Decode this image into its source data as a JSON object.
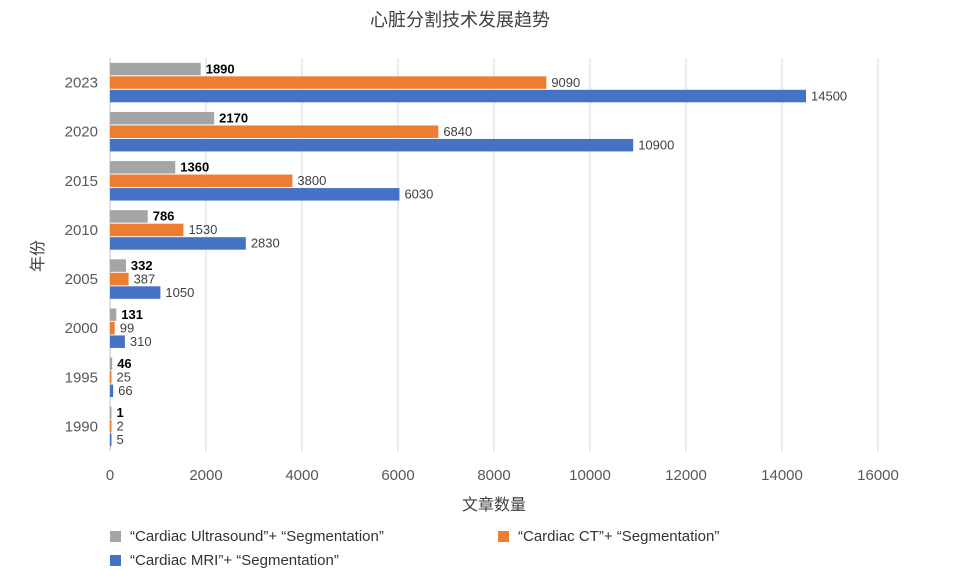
{
  "chart_data": {
    "type": "bar",
    "orientation": "horizontal",
    "title": "心脏分割技术发展趋势",
    "xlabel": "文章数量",
    "ylabel": "年份",
    "categories": [
      "1990",
      "1995",
      "2000",
      "2005",
      "2010",
      "2015",
      "2020",
      "2023"
    ],
    "xlim": [
      0,
      16000
    ],
    "xticks": [
      "0",
      "2000",
      "4000",
      "6000",
      "8000",
      "10000",
      "12000",
      "14000",
      "16000"
    ],
    "grid": true,
    "legend_position": "bottom",
    "series": [
      {
        "name": "“Cardiac Ultrasound”+ “Segmentation”",
        "color": "#A5A5A5",
        "values": [
          1,
          46,
          131,
          332,
          786,
          1360,
          2170,
          1890
        ]
      },
      {
        "name": "“Cardiac CT”+ “Segmentation”",
        "color": "#ED7D31",
        "values": [
          2,
          25,
          99,
          387,
          1530,
          3800,
          6840,
          9090
        ]
      },
      {
        "name": "“Cardiac MRI”+ “Segmentation”",
        "color": "#4472C4",
        "values": [
          5,
          66,
          310,
          1050,
          2830,
          6030,
          10900,
          14500
        ]
      }
    ]
  }
}
